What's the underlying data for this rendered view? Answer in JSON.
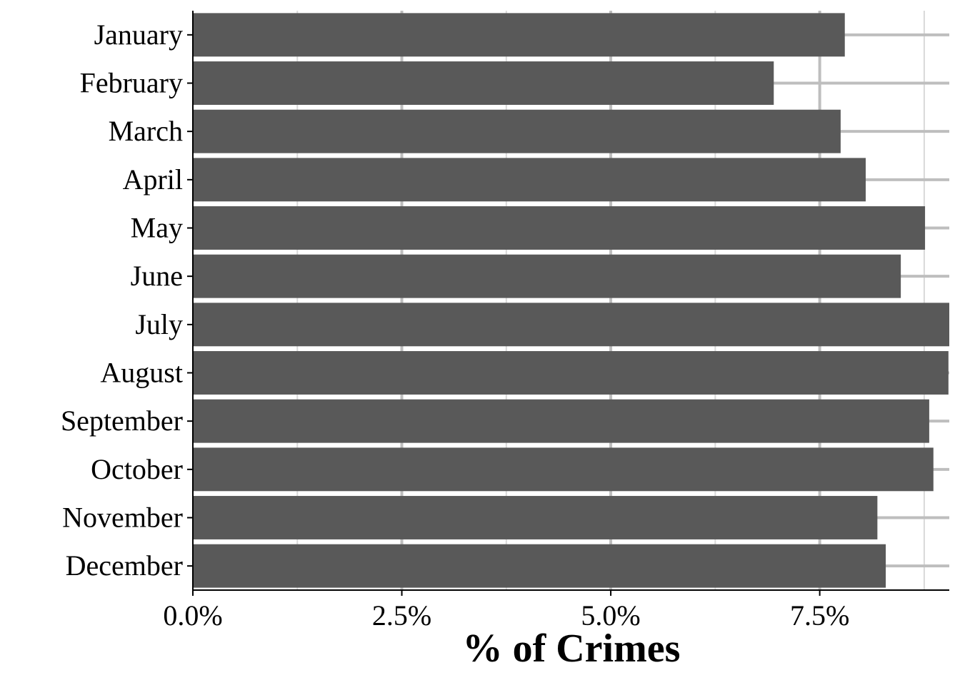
{
  "chart_data": {
    "type": "bar",
    "orientation": "horizontal",
    "categories": [
      "January",
      "February",
      "March",
      "April",
      "May",
      "June",
      "July",
      "August",
      "September",
      "October",
      "November",
      "December"
    ],
    "values": [
      7.8,
      6.95,
      7.75,
      8.05,
      8.76,
      8.47,
      9.05,
      9.04,
      8.81,
      8.86,
      8.19,
      8.29
    ],
    "xlabel": "% of Crimes",
    "ylabel": "",
    "xlim": [
      0,
      9.05
    ],
    "xticks": [
      0,
      2.5,
      5,
      7.5
    ],
    "xtick_labels": [
      "0.0%",
      "2.5%",
      "5.0%",
      "7.5%"
    ],
    "grid": true,
    "colors": {
      "bar": "#595959",
      "grid_major": "#bebebe",
      "grid_minor": "#d9d9d9",
      "axis": "#000000"
    }
  }
}
